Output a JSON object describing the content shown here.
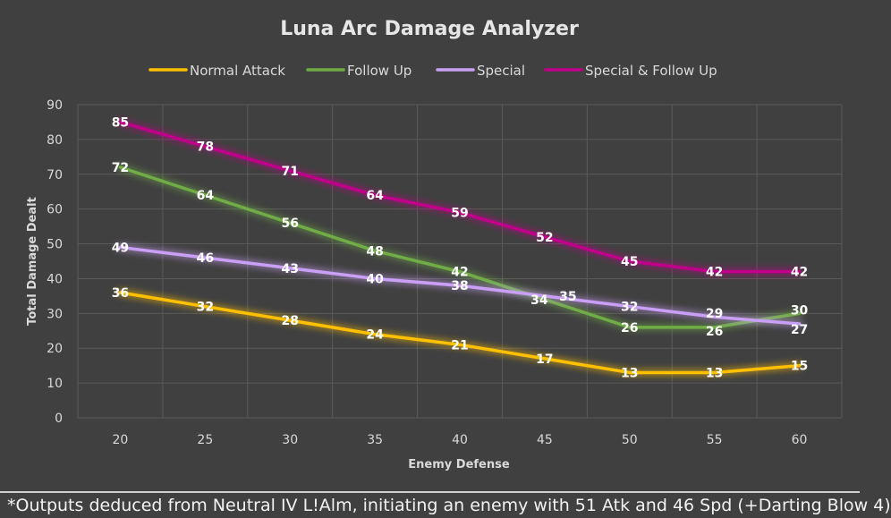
{
  "chart_data": {
    "type": "line",
    "title": "Luna Arc Damage Analyzer",
    "xlabel": "Enemy Defense",
    "ylabel": "Total Damage Dealt",
    "categories": [
      20,
      25,
      30,
      35,
      40,
      45,
      50,
      55,
      60
    ],
    "ylim": [
      0,
      90
    ],
    "yticks": [
      0,
      10,
      20,
      30,
      40,
      50,
      60,
      70,
      80,
      90
    ],
    "grid": true,
    "legend_position": "top",
    "series": [
      {
        "name": "Normal Attack",
        "color": "#ffc000",
        "values": [
          36,
          32,
          28,
          24,
          21,
          17,
          13,
          13,
          15
        ]
      },
      {
        "name": "Follow Up",
        "color": "#70ad47",
        "values": [
          72,
          64,
          56,
          48,
          42,
          34,
          26,
          26,
          30
        ]
      },
      {
        "name": "Special",
        "color": "#c9a0f5",
        "values": [
          49,
          46,
          43,
          40,
          38,
          35,
          32,
          29,
          27
        ]
      },
      {
        "name": "Special & Follow Up",
        "color": "#c0008a",
        "values": [
          85,
          78,
          71,
          64,
          59,
          52,
          45,
          42,
          42
        ]
      }
    ]
  },
  "footnote": "*Outputs deduced from Neutral IV L!Alm, initiating an enemy with 51 Atk and 46 Spd (+Darting Blow 4)"
}
